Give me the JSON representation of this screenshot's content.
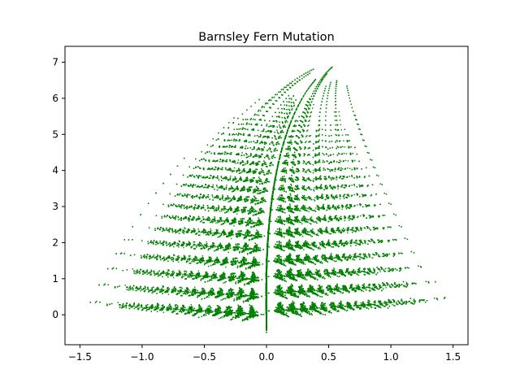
{
  "chart_data": {
    "type": "scatter",
    "title": "Barnsley Fern Mutation",
    "xlabel": "",
    "ylabel": "",
    "xlim": [
      -1.62,
      1.62
    ],
    "ylim": [
      -0.83,
      7.44
    ],
    "xticks": [
      -1.5,
      -1.0,
      -0.5,
      0.0,
      0.5,
      1.0,
      1.5
    ],
    "xtick_labels": [
      "−1.5",
      "−1.0",
      "−0.5",
      "0.0",
      "0.5",
      "1.0",
      "1.5"
    ],
    "yticks": [
      0,
      1,
      2,
      3,
      4,
      5,
      6,
      7
    ],
    "ytick_labels": [
      "0",
      "1",
      "2",
      "3",
      "4",
      "5",
      "6",
      "7"
    ],
    "grid": false,
    "legend": "none",
    "series": [
      {
        "point_color": "#008000",
        "generator": "barnsley-fern-mutation",
        "point_count": 30000,
        "transforms": [
          {
            "a": 0.0,
            "b": 0.0,
            "c": 0.0,
            "d": 0.25,
            "e": 0.0,
            "f": -0.4,
            "p": 0.02
          },
          {
            "a": 0.95,
            "b": 0.005,
            "c": -0.005,
            "d": 0.93,
            "e": -0.002,
            "f": 0.5,
            "p": 0.84
          },
          {
            "a": 0.035,
            "b": -0.2,
            "c": 0.16,
            "d": 0.04,
            "e": -0.09,
            "f": 0.02,
            "p": 0.07
          },
          {
            "a": -0.04,
            "b": 0.2,
            "c": 0.16,
            "d": 0.04,
            "e": 0.083,
            "f": 0.12,
            "p": 0.07
          }
        ]
      }
    ]
  }
}
